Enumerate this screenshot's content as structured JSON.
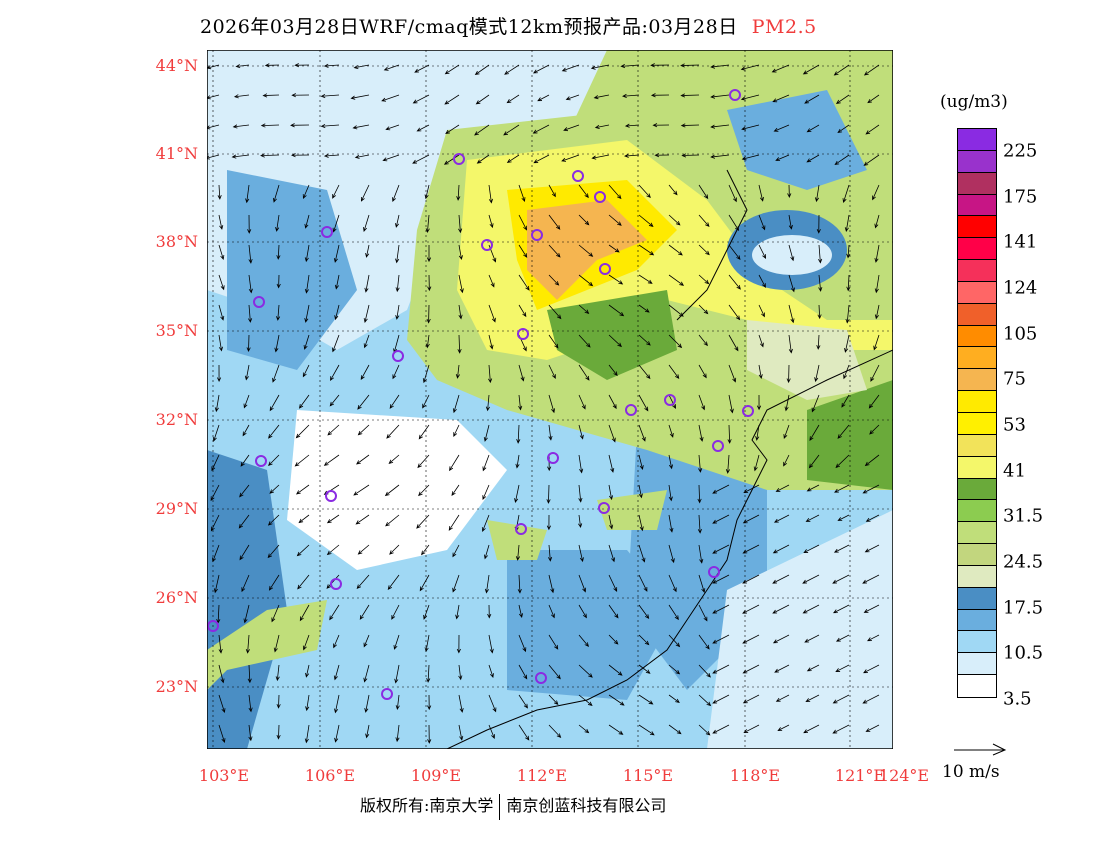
{
  "title": {
    "main": "2026年03月28日WRF/cmaq模式12km预报产品:03月28日",
    "species": "PM2.5"
  },
  "map": {
    "lat_labels": [
      "44°N",
      "41°N",
      "38°N",
      "35°N",
      "32°N",
      "29°N",
      "26°N",
      "23°N"
    ],
    "lon_labels": [
      "103°E",
      "106°E",
      "109°E",
      "112°E",
      "115°E",
      "118°E",
      "121°E",
      "124°E"
    ]
  },
  "colorbar": {
    "unit": "(ug/m3)",
    "colors": [
      "#8a2be2",
      "#9932cc",
      "#b03060",
      "#c71585",
      "#ff0000",
      "#ff0048",
      "#f5305a",
      "#ff6666",
      "#f0602a",
      "#ff8c00",
      "#ffae20",
      "#f5b550",
      "#ffea00",
      "#fff000",
      "#f2e35a",
      "#f4f76a",
      "#6aaa3a",
      "#8ccc50",
      "#c0de7a",
      "#c2d67e",
      "#dfeac0",
      "#4a8ec4",
      "#6aaede",
      "#a0d8f4",
      "#d8eefa",
      "#ffffff"
    ],
    "labels": [
      "225",
      "175",
      "141",
      "124",
      "105",
      "75",
      "53",
      "41",
      "31.5",
      "24.5",
      "17.5",
      "10.5",
      "3.5"
    ]
  },
  "wind_reference": "10 m/s",
  "footer": {
    "left": "版权所有:南京大学",
    "right": "南京创蓝科技有限公司"
  }
}
